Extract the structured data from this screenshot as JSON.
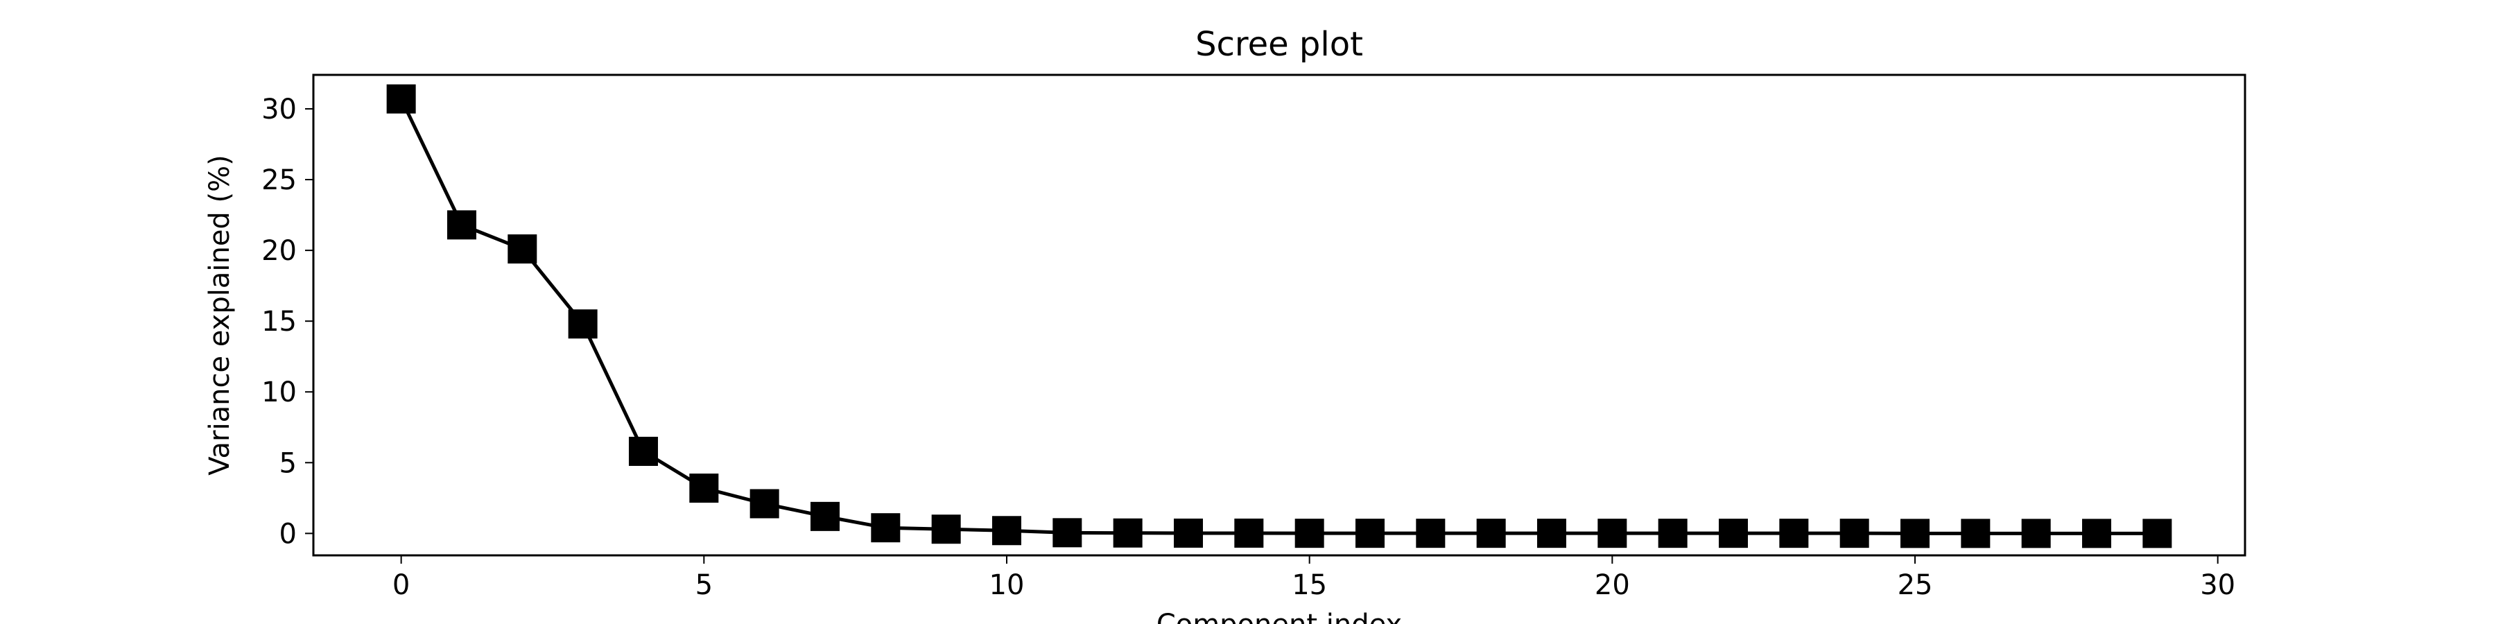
{
  "chart_data": {
    "type": "line",
    "title": "Scree plot",
    "xlabel": "Component index",
    "ylabel": "Variance explained (%)",
    "xlim": [
      -1.45,
      30.45
    ],
    "ylim": [
      -1.55,
      32.4
    ],
    "xticks": [
      0,
      5,
      10,
      15,
      20,
      25,
      30
    ],
    "yticks": [
      0,
      5,
      10,
      15,
      20,
      25,
      30
    ],
    "grid": false,
    "marker": "square",
    "line_color": "#000000",
    "marker_color": "#000000",
    "x": [
      0,
      1,
      2,
      3,
      4,
      5,
      6,
      7,
      8,
      9,
      10,
      11,
      12,
      13,
      14,
      15,
      16,
      17,
      18,
      19,
      20,
      21,
      22,
      23,
      24,
      25,
      26,
      27,
      28,
      29
    ],
    "series": [
      {
        "values": [
          30.7,
          21.8,
          20.1,
          14.8,
          5.8,
          3.2,
          2.1,
          1.2,
          0.4,
          0.3,
          0.2,
          0.05,
          0.03,
          0.02,
          0.02,
          0.01,
          0.01,
          0.01,
          0.01,
          0.01,
          0.01,
          0.01,
          0.01,
          0.01,
          0.01,
          0.0,
          0.0,
          0.0,
          0.0,
          0.0
        ]
      }
    ]
  }
}
